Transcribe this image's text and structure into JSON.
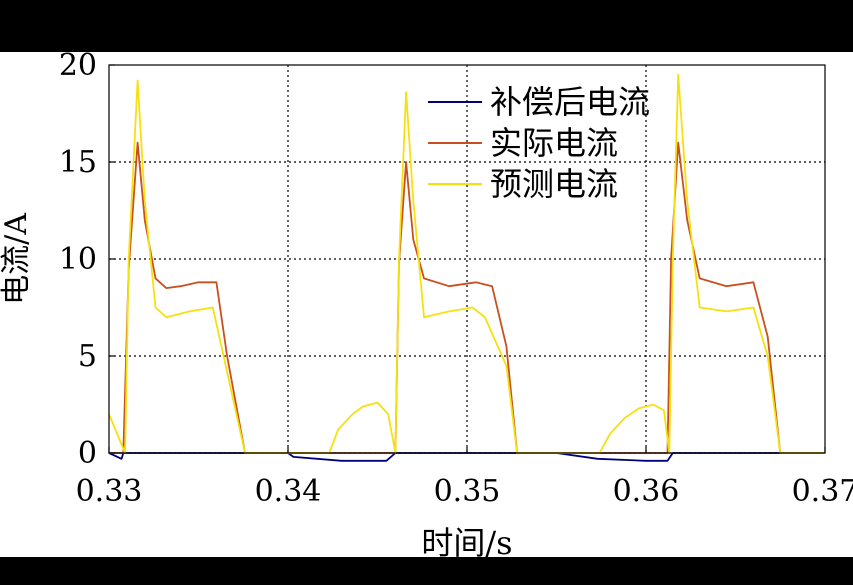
{
  "chart_data": {
    "type": "line",
    "title": "",
    "xlabel": "时间/s",
    "ylabel": "电流/A",
    "xlim": [
      0.33,
      0.37
    ],
    "ylim": [
      0,
      20
    ],
    "x_ticks": [
      0.33,
      0.34,
      0.35,
      0.36,
      0.37
    ],
    "x_tick_labels": [
      "0.33",
      "0.34",
      "0.35",
      "0.36",
      "0.37"
    ],
    "y_ticks": [
      0,
      5,
      10,
      15,
      20
    ],
    "y_tick_labels": [
      "0",
      "5",
      "10",
      "15",
      "20"
    ],
    "grid": true,
    "grid_style": "dotted",
    "legend_position": "top-right",
    "series": [
      {
        "name": "补偿后电流",
        "color": "#00007A",
        "points": [
          [
            0.33,
            0.0
          ],
          [
            0.3307,
            -0.3
          ],
          [
            0.3308,
            0.0
          ],
          [
            0.34,
            0.0
          ],
          [
            0.3403,
            -0.2
          ],
          [
            0.343,
            -0.4
          ],
          [
            0.3455,
            -0.4
          ],
          [
            0.346,
            0.0
          ],
          [
            0.355,
            0.0
          ],
          [
            0.3573,
            -0.3
          ],
          [
            0.36,
            -0.4
          ],
          [
            0.3612,
            -0.4
          ],
          [
            0.3615,
            0.0
          ],
          [
            0.37,
            0.0
          ]
        ]
      },
      {
        "name": "实际电流",
        "color": "#C8501E",
        "points": [
          [
            0.33,
            0.0
          ],
          [
            0.3308,
            0.0
          ],
          [
            0.3311,
            9.5
          ],
          [
            0.3316,
            16.0
          ],
          [
            0.332,
            12.0
          ],
          [
            0.3326,
            9.0
          ],
          [
            0.3332,
            8.5
          ],
          [
            0.334,
            8.6
          ],
          [
            0.335,
            8.8
          ],
          [
            0.336,
            8.8
          ],
          [
            0.3366,
            5.0
          ],
          [
            0.3376,
            0.0
          ],
          [
            0.346,
            0.0
          ],
          [
            0.3462,
            9.8
          ],
          [
            0.3466,
            15.0
          ],
          [
            0.347,
            11.0
          ],
          [
            0.3476,
            9.0
          ],
          [
            0.349,
            8.6
          ],
          [
            0.3505,
            8.8
          ],
          [
            0.3514,
            8.6
          ],
          [
            0.3522,
            5.5
          ],
          [
            0.3528,
            0.0
          ],
          [
            0.3612,
            0.0
          ],
          [
            0.3614,
            10.0
          ],
          [
            0.3618,
            16.0
          ],
          [
            0.3623,
            12.0
          ],
          [
            0.363,
            9.0
          ],
          [
            0.3645,
            8.6
          ],
          [
            0.366,
            8.8
          ],
          [
            0.3668,
            6.0
          ],
          [
            0.3675,
            0.0
          ],
          [
            0.37,
            0.0
          ]
        ]
      },
      {
        "name": "预测电流",
        "color": "#F5E10F",
        "points": [
          [
            0.33,
            2.0
          ],
          [
            0.3309,
            0.0
          ],
          [
            0.3311,
            10.0
          ],
          [
            0.3316,
            19.2
          ],
          [
            0.332,
            13.0
          ],
          [
            0.3326,
            7.5
          ],
          [
            0.3332,
            7.0
          ],
          [
            0.3345,
            7.3
          ],
          [
            0.3358,
            7.5
          ],
          [
            0.3364,
            5.0
          ],
          [
            0.3376,
            0.0
          ],
          [
            0.3423,
            0.0
          ],
          [
            0.3428,
            1.2
          ],
          [
            0.3436,
            2.0
          ],
          [
            0.3442,
            2.4
          ],
          [
            0.345,
            2.6
          ],
          [
            0.3456,
            2.0
          ],
          [
            0.346,
            0.0
          ],
          [
            0.3462,
            10.0
          ],
          [
            0.3466,
            18.6
          ],
          [
            0.347,
            13.0
          ],
          [
            0.3476,
            7.0
          ],
          [
            0.349,
            7.3
          ],
          [
            0.3503,
            7.5
          ],
          [
            0.351,
            7.0
          ],
          [
            0.3522,
            4.5
          ],
          [
            0.3528,
            0.0
          ],
          [
            0.3574,
            0.0
          ],
          [
            0.358,
            1.0
          ],
          [
            0.3588,
            1.8
          ],
          [
            0.3596,
            2.3
          ],
          [
            0.3604,
            2.5
          ],
          [
            0.361,
            2.2
          ],
          [
            0.3613,
            0.0
          ],
          [
            0.3615,
            10.0
          ],
          [
            0.3618,
            19.5
          ],
          [
            0.3623,
            13.0
          ],
          [
            0.363,
            7.5
          ],
          [
            0.3645,
            7.3
          ],
          [
            0.366,
            7.5
          ],
          [
            0.3668,
            5.0
          ],
          [
            0.3675,
            0.0
          ],
          [
            0.37,
            0.0
          ]
        ]
      }
    ]
  }
}
